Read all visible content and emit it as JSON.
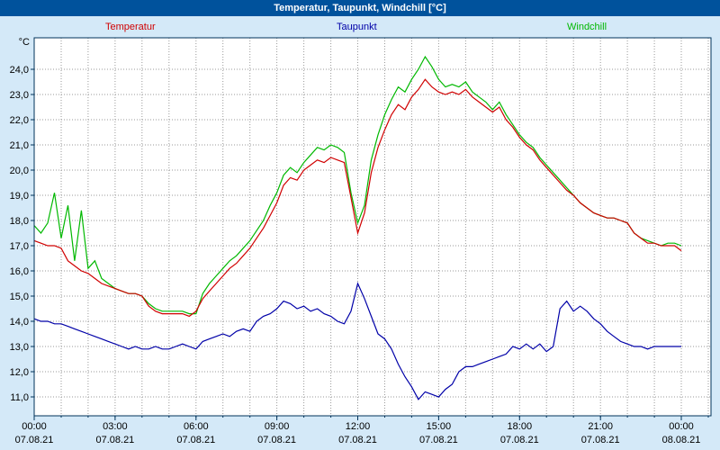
{
  "title_bar": {
    "text": "Temperatur, Taupunkt, Windchill [°C]"
  },
  "chart_data": {
    "type": "line",
    "title": "Temperatur, Taupunkt, Windchill [°C]",
    "xlabel": "",
    "ylabel": "°C",
    "x_start_hours": 0,
    "x_step_hours": 0.25,
    "x_range_hours": [
      0,
      25.1
    ],
    "y_range": [
      10.25,
      25.25
    ],
    "grid": {
      "x_every_hours": 1,
      "y_every_deg": 1,
      "style": "dotted"
    },
    "y_ticks": [
      {
        "v": 11,
        "label": "11,0"
      },
      {
        "v": 12,
        "label": "12,0"
      },
      {
        "v": 13,
        "label": "13,0"
      },
      {
        "v": 14,
        "label": "14,0"
      },
      {
        "v": 15,
        "label": "15,0"
      },
      {
        "v": 16,
        "label": "16,0"
      },
      {
        "v": 17,
        "label": "17,0"
      },
      {
        "v": 18,
        "label": "18,0"
      },
      {
        "v": 19,
        "label": "19,0"
      },
      {
        "v": 20,
        "label": "20,0"
      },
      {
        "v": 21,
        "label": "21,0"
      },
      {
        "v": 22,
        "label": "22,0"
      },
      {
        "v": 23,
        "label": "23,0"
      },
      {
        "v": 24,
        "label": "24,0"
      }
    ],
    "x_ticks": [
      {
        "t": 0,
        "time": "00:00",
        "date": "07.08.21"
      },
      {
        "t": 3,
        "time": "03:00",
        "date": "07.08.21"
      },
      {
        "t": 6,
        "time": "06:00",
        "date": "07.08.21"
      },
      {
        "t": 9,
        "time": "09:00",
        "date": "07.08.21"
      },
      {
        "t": 12,
        "time": "12:00",
        "date": "07.08.21"
      },
      {
        "t": 15,
        "time": "15:00",
        "date": "07.08.21"
      },
      {
        "t": 18,
        "time": "18:00",
        "date": "07.08.21"
      },
      {
        "t": 21,
        "time": "21:00",
        "date": "07.08.21"
      },
      {
        "t": 24,
        "time": "00:00",
        "date": "08.08.21"
      }
    ],
    "series": [
      {
        "name": "Temperatur",
        "color": "#d00000",
        "values": [
          17.2,
          17.1,
          17.0,
          17.0,
          16.9,
          16.4,
          16.2,
          16.0,
          15.9,
          15.7,
          15.5,
          15.4,
          15.3,
          15.2,
          15.1,
          15.1,
          15.0,
          14.6,
          14.4,
          14.3,
          14.3,
          14.3,
          14.3,
          14.2,
          14.4,
          14.9,
          15.2,
          15.5,
          15.8,
          16.1,
          16.3,
          16.6,
          16.9,
          17.3,
          17.7,
          18.2,
          18.7,
          19.4,
          19.7,
          19.6,
          20.0,
          20.2,
          20.4,
          20.3,
          20.5,
          20.4,
          20.3,
          18.9,
          17.5,
          18.3,
          19.9,
          20.9,
          21.6,
          22.2,
          22.6,
          22.4,
          22.9,
          23.2,
          23.6,
          23.3,
          23.1,
          23.0,
          23.1,
          23.0,
          23.2,
          22.9,
          22.7,
          22.5,
          22.3,
          22.5,
          22.0,
          21.7,
          21.3,
          21.0,
          20.8,
          20.4,
          20.1,
          19.8,
          19.5,
          19.2,
          19.0,
          18.7,
          18.5,
          18.3,
          18.2,
          18.1,
          18.1,
          18.0,
          17.9,
          17.5,
          17.3,
          17.1,
          17.1,
          17.0,
          17.0,
          17.0,
          16.8
        ]
      },
      {
        "name": "Taupunkt",
        "color": "#0000a8",
        "values": [
          14.1,
          14.0,
          14.0,
          13.9,
          13.9,
          13.8,
          13.7,
          13.6,
          13.5,
          13.4,
          13.3,
          13.2,
          13.1,
          13.0,
          12.9,
          13.0,
          12.9,
          12.9,
          13.0,
          12.9,
          12.9,
          13.0,
          13.1,
          13.0,
          12.9,
          13.2,
          13.3,
          13.4,
          13.5,
          13.4,
          13.6,
          13.7,
          13.6,
          14.0,
          14.2,
          14.3,
          14.5,
          14.8,
          14.7,
          14.5,
          14.6,
          14.4,
          14.5,
          14.3,
          14.2,
          14.0,
          13.9,
          14.4,
          15.5,
          14.9,
          14.2,
          13.5,
          13.3,
          12.9,
          12.3,
          11.8,
          11.4,
          10.9,
          11.2,
          11.1,
          11.0,
          11.3,
          11.5,
          12.0,
          12.2,
          12.2,
          12.3,
          12.4,
          12.5,
          12.6,
          12.7,
          13.0,
          12.9,
          13.1,
          12.9,
          13.1,
          12.8,
          13.0,
          14.5,
          14.8,
          14.4,
          14.6,
          14.4,
          14.1,
          13.9,
          13.6,
          13.4,
          13.2,
          13.1,
          13.0,
          13.0,
          12.9,
          13.0,
          13.0,
          13.0,
          13.0,
          13.0
        ]
      },
      {
        "name": "Windchill",
        "color": "#00b800",
        "values": [
          17.8,
          17.5,
          17.9,
          19.1,
          17.3,
          18.6,
          16.4,
          18.4,
          16.1,
          16.4,
          15.7,
          15.5,
          15.3,
          15.2,
          15.1,
          15.1,
          15.0,
          14.7,
          14.5,
          14.4,
          14.4,
          14.4,
          14.4,
          14.3,
          14.3,
          15.1,
          15.5,
          15.8,
          16.1,
          16.4,
          16.6,
          16.9,
          17.2,
          17.6,
          18.0,
          18.6,
          19.1,
          19.8,
          20.1,
          19.9,
          20.3,
          20.6,
          20.9,
          20.8,
          21.0,
          20.9,
          20.7,
          19.1,
          17.9,
          18.6,
          20.4,
          21.4,
          22.2,
          22.8,
          23.3,
          23.1,
          23.6,
          24.0,
          24.5,
          24.1,
          23.6,
          23.3,
          23.4,
          23.3,
          23.5,
          23.1,
          22.9,
          22.7,
          22.4,
          22.7,
          22.2,
          21.8,
          21.4,
          21.1,
          20.9,
          20.5,
          20.2,
          19.9,
          19.6,
          19.3,
          19.0,
          18.7,
          18.5,
          18.3,
          18.2,
          18.1,
          18.1,
          18.0,
          17.9,
          17.5,
          17.3,
          17.2,
          17.1,
          17.0,
          17.1,
          17.1,
          17.0
        ]
      }
    ],
    "legend_position": "top",
    "plot_colors": {
      "page_background": "#d4e9f8",
      "plot_background": "#ffffff",
      "title_bar_background": "#00529c",
      "grid": "#9a9a9a",
      "border": "#00325a",
      "axis_text": "#000000"
    }
  }
}
